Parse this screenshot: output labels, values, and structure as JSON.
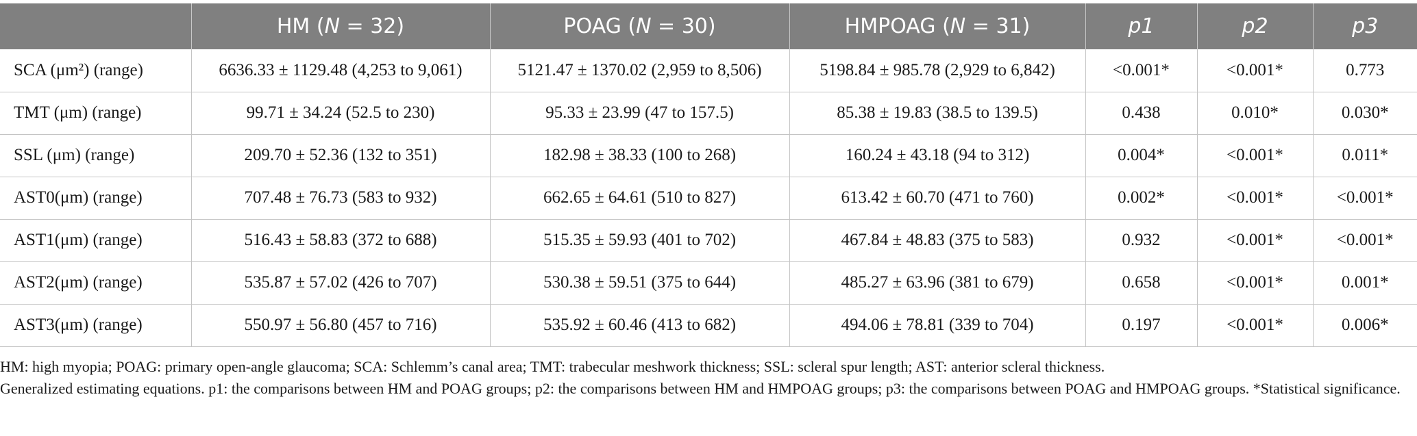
{
  "table": {
    "headers": [
      {
        "pre": "",
        "ital": "",
        "post": ""
      },
      {
        "pre": "HM (",
        "ital": "N",
        "post": " = 32)"
      },
      {
        "pre": "POAG (",
        "ital": "N",
        "post": " = 30)"
      },
      {
        "pre": "HMPOAG (",
        "ital": "N",
        "post": " = 31)"
      },
      {
        "pre": "",
        "ital": "p1",
        "post": ""
      },
      {
        "pre": "",
        "ital": "p2",
        "post": ""
      },
      {
        "pre": "",
        "ital": "p3",
        "post": ""
      }
    ],
    "rows": [
      {
        "label": "SCA (μm²) (range)",
        "hm": "6636.33 ± 1129.48 (4,253 to 9,061)",
        "poag": "5121.47 ± 1370.02 (2,959 to 8,506)",
        "hmpoag": "5198.84 ± 985.78 (2,929 to 6,842)",
        "p1": "<0.001*",
        "p2": "<0.001*",
        "p3": "0.773"
      },
      {
        "label": "TMT (μm) (range)",
        "hm": "99.71 ± 34.24 (52.5 to 230)",
        "poag": "95.33 ± 23.99 (47 to 157.5)",
        "hmpoag": "85.38 ± 19.83 (38.5 to 139.5)",
        "p1": "0.438",
        "p2": "0.010*",
        "p3": "0.030*"
      },
      {
        "label": "SSL (μm) (range)",
        "hm": "209.70 ± 52.36 (132 to 351)",
        "poag": "182.98 ± 38.33 (100 to 268)",
        "hmpoag": "160.24 ± 43.18 (94 to 312)",
        "p1": "0.004*",
        "p2": "<0.001*",
        "p3": "0.011*"
      },
      {
        "label": "AST0(μm) (range)",
        "hm": "707.48 ± 76.73 (583 to 932)",
        "poag": "662.65 ± 64.61 (510 to 827)",
        "hmpoag": "613.42 ± 60.70 (471 to 760)",
        "p1": "0.002*",
        "p2": "<0.001*",
        "p3": "<0.001*"
      },
      {
        "label": "AST1(μm) (range)",
        "hm": "516.43 ± 58.83 (372 to 688)",
        "poag": "515.35 ± 59.93 (401 to 702)",
        "hmpoag": "467.84 ± 48.83 (375 to 583)",
        "p1": "0.932",
        "p2": "<0.001*",
        "p3": "<0.001*"
      },
      {
        "label": "AST2(μm) (range)",
        "hm": "535.87 ± 57.02 (426 to 707)",
        "poag": "530.38 ± 59.51 (375 to 644)",
        "hmpoag": "485.27 ± 63.96 (381 to 679)",
        "p1": "0.658",
        "p2": "<0.001*",
        "p3": "0.001*"
      },
      {
        "label": "AST3(μm) (range)",
        "hm": "550.97 ± 56.80 (457 to 716)",
        "poag": "535.92 ± 60.46 (413 to 682)",
        "hmpoag": "494.06 ± 78.81 (339 to 704)",
        "p1": "0.197",
        "p2": "<0.001*",
        "p3": "0.006*"
      }
    ]
  },
  "notes": {
    "abbreviations": "HM: high myopia; POAG: primary open-angle glaucoma; SCA: Schlemm’s canal area; TMT: trabecular meshwork thickness; SSL: scleral spur length; AST: anterior scleral thickness.",
    "methods": "Generalized estimating equations. p1: the comparisons between HM and POAG groups; p2: the comparisons between HM and HMPOAG groups; p3: the comparisons between POAG and HMPOAG groups. *Statistical significance."
  }
}
